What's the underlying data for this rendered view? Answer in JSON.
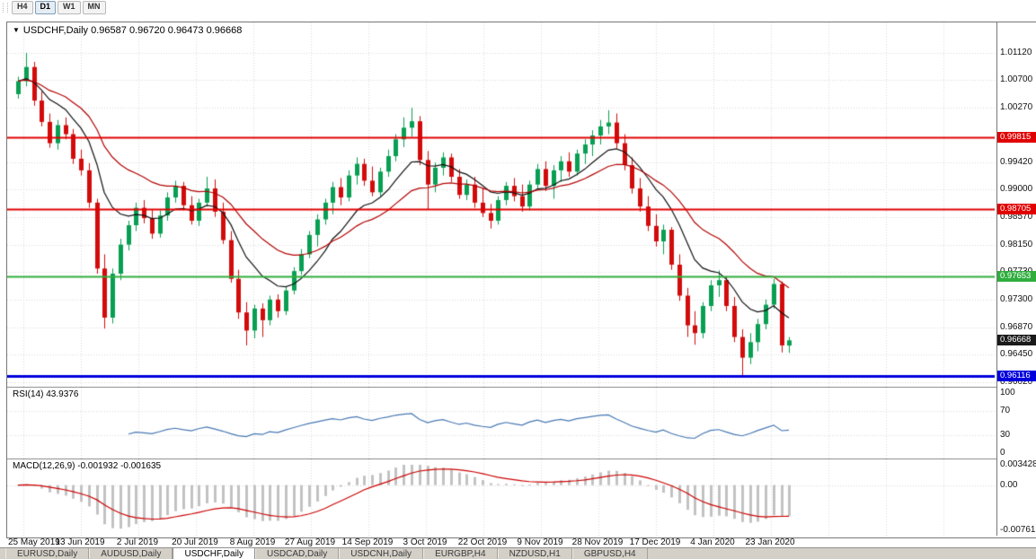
{
  "toolbar": {
    "timeframes": [
      {
        "label": "H4",
        "active": false
      },
      {
        "label": "D1",
        "active": true
      },
      {
        "label": "W1",
        "active": false
      },
      {
        "label": "MN",
        "active": false
      }
    ]
  },
  "symbol_bar": {
    "marker": "▼",
    "symbol": "USDCHF,Daily",
    "open": "0.96587",
    "high": "0.96720",
    "low": "0.96473",
    "close": "0.96668"
  },
  "price_axis": {
    "ticks": [
      "1.01120",
      "1.00700",
      "1.00270",
      "0.99420",
      "0.99000",
      "0.98570",
      "0.98150",
      "0.97730",
      "0.97300",
      "0.96870",
      "0.96450",
      "0.96020"
    ],
    "badges": [
      {
        "label": "0.99815",
        "price": 0.99815,
        "color": "#e00000"
      },
      {
        "label": "0.98705",
        "price": 0.98705,
        "color": "#e00000"
      },
      {
        "label": "0.97653",
        "price": 0.97653,
        "color": "#2fae3d"
      },
      {
        "label": "0.96668",
        "price": 0.96668,
        "color": "#1a1a1a"
      },
      {
        "label": "0.96116",
        "price": 0.96116,
        "color": "#0000dd"
      }
    ]
  },
  "rsi_panel": {
    "name": "RSI(14)",
    "value": "43.9376",
    "ticks": [
      {
        "label": "100",
        "value": 100
      },
      {
        "label": "70",
        "value": 70
      },
      {
        "label": "30",
        "value": 30
      },
      {
        "label": "0",
        "value": 0
      }
    ]
  },
  "macd_panel": {
    "name": "MACD(12,26,9)",
    "macd_value": "-0.001932",
    "signal_value": "-0.001635",
    "ticks": [
      {
        "label": "0.003428",
        "value": 0.003428
      },
      {
        "label": "0.00",
        "value": 0
      },
      {
        "label": "-0.007615",
        "value": -0.007615
      }
    ]
  },
  "dates": [
    "25 May 2019",
    "13 Jun 2019",
    "2 Jul 2019",
    "20 Jul 2019",
    "8 Aug 2019",
    "27 Aug 2019",
    "14 Sep 2019",
    "3 Oct 2019",
    "22 Oct 2019",
    "9 Nov 2019",
    "28 Nov 2019",
    "17 Dec 2019",
    "4 Jan 2020",
    "23 Jan 2020"
  ],
  "tabs": [
    {
      "label": "EURUSD,Daily",
      "active": false
    },
    {
      "label": "AUDUSD,Daily",
      "active": false
    },
    {
      "label": "USDCHF,Daily",
      "active": true
    },
    {
      "label": "USDCAD,Daily",
      "active": false
    },
    {
      "label": "USDCNH,Daily",
      "active": false
    },
    {
      "label": "EURGBP,H4",
      "active": false
    },
    {
      "label": "NZDUSD,H1",
      "active": false
    },
    {
      "label": "GBPUSD,H4",
      "active": false
    }
  ],
  "chart_data": {
    "type": "candlestick",
    "symbol": "USDCHF",
    "timeframe": "Daily",
    "title": "USDCHF,Daily",
    "ohlc_current": {
      "open": 0.96587,
      "high": 0.9672,
      "low": 0.96473,
      "close": 0.96668
    },
    "ylim": [
      0.9595,
      1.0159
    ],
    "y_ticks": [
      1.0112,
      1.007,
      1.0027,
      0.9942,
      0.99,
      0.9857,
      0.9815,
      0.9773,
      0.973,
      0.9687,
      0.9645,
      0.9602
    ],
    "x_labels": [
      "25 May 2019",
      "13 Jun 2019",
      "2 Jul 2019",
      "20 Jul 2019",
      "8 Aug 2019",
      "27 Aug 2019",
      "14 Sep 2019",
      "3 Oct 2019",
      "22 Oct 2019",
      "9 Nov 2019",
      "28 Nov 2019",
      "17 Dec 2019",
      "4 Jan 2020",
      "23 Jan 2020"
    ],
    "hlines": [
      {
        "price": 0.99815,
        "color": "#e00000",
        "width": 2,
        "label": "0.99815"
      },
      {
        "price": 0.98705,
        "color": "#e00000",
        "width": 2,
        "label": "0.98705"
      },
      {
        "price": 0.97653,
        "color": "#2fae3d",
        "width": 2,
        "label": "0.97653"
      },
      {
        "price": 0.96116,
        "color": "#0000dd",
        "width": 3,
        "label": "0.96116"
      }
    ],
    "current_price": {
      "value": 0.96668,
      "label": "0.96668",
      "badge_color": "#1a1a1a"
    },
    "moving_averages": [
      {
        "type": "ema",
        "period": 10,
        "color": "#111111"
      },
      {
        "type": "ema",
        "period": 22,
        "color": "#b30000"
      }
    ],
    "indicators": {
      "rsi": {
        "name": "RSI(14)",
        "period": 14,
        "value": 43.9376,
        "levels": [
          100,
          70,
          30,
          0
        ],
        "color": "#4778b3"
      },
      "macd": {
        "name": "MACD(12,26,9)",
        "fast": 12,
        "slow": 26,
        "signal": 9,
        "value": -0.001932,
        "signal_value": -0.001635,
        "range": [
          -0.007615,
          0.003428
        ],
        "histogram_color": "#c2c2c2",
        "signal_color": "#cc0000"
      }
    },
    "colors": {
      "bull": "#089f52",
      "bear": "#d20b0b",
      "grid": "#d8d8d8",
      "background": "#ffffff"
    },
    "candles": [
      [
        1.0048,
        1.0075,
        1.0041,
        1.0068
      ],
      [
        1.0068,
        1.0112,
        1.006,
        1.009
      ],
      [
        1.009,
        1.0098,
        1.003,
        1.0038
      ],
      [
        1.0038,
        1.0052,
        0.9998,
        1.0005
      ],
      [
        1.0005,
        1.0018,
        0.9965,
        0.9972
      ],
      [
        0.9972,
        1.0008,
        0.9962,
        1.0
      ],
      [
        1.0,
        1.0012,
        0.9978,
        0.9986
      ],
      [
        0.9986,
        0.9994,
        0.994,
        0.9948
      ],
      [
        0.9948,
        0.9962,
        0.9922,
        0.993
      ],
      [
        0.993,
        0.9941,
        0.9872,
        0.988
      ],
      [
        0.988,
        0.9886,
        0.977,
        0.9778
      ],
      [
        0.9778,
        0.98,
        0.9685,
        0.9702
      ],
      [
        0.9702,
        0.9778,
        0.9693,
        0.977
      ],
      [
        0.977,
        0.9824,
        0.976,
        0.9815
      ],
      [
        0.9815,
        0.9852,
        0.9806,
        0.9845
      ],
      [
        0.9845,
        0.988,
        0.9836,
        0.9872
      ],
      [
        0.9872,
        0.9884,
        0.9848,
        0.9856
      ],
      [
        0.9856,
        0.987,
        0.9824,
        0.9832
      ],
      [
        0.9832,
        0.9868,
        0.9826,
        0.986
      ],
      [
        0.986,
        0.9896,
        0.9852,
        0.9888
      ],
      [
        0.9888,
        0.9914,
        0.988,
        0.9906
      ],
      [
        0.9906,
        0.9912,
        0.9868,
        0.9876
      ],
      [
        0.9876,
        0.989,
        0.9846,
        0.9852
      ],
      [
        0.9852,
        0.9886,
        0.9844,
        0.988
      ],
      [
        0.988,
        0.992,
        0.9874,
        0.9902
      ],
      [
        0.9902,
        0.9916,
        0.9858,
        0.9866
      ],
      [
        0.9866,
        0.988,
        0.9816,
        0.9822
      ],
      [
        0.9822,
        0.9836,
        0.9756,
        0.9762
      ],
      [
        0.9762,
        0.9776,
        0.97,
        0.971
      ],
      [
        0.971,
        0.9726,
        0.9659,
        0.9682
      ],
      [
        0.9682,
        0.9722,
        0.967,
        0.9716
      ],
      [
        0.9716,
        0.9724,
        0.9672,
        0.9698
      ],
      [
        0.9698,
        0.9736,
        0.969,
        0.973
      ],
      [
        0.973,
        0.9738,
        0.9702,
        0.9712
      ],
      [
        0.9712,
        0.975,
        0.9706,
        0.9744
      ],
      [
        0.9744,
        0.978,
        0.9738,
        0.9774
      ],
      [
        0.9774,
        0.9808,
        0.9768,
        0.98
      ],
      [
        0.98,
        0.9836,
        0.9794,
        0.983
      ],
      [
        0.983,
        0.9862,
        0.9812,
        0.9854
      ],
      [
        0.9854,
        0.9886,
        0.9846,
        0.988
      ],
      [
        0.988,
        0.9912,
        0.9862,
        0.9904
      ],
      [
        0.9904,
        0.9918,
        0.9876,
        0.9888
      ],
      [
        0.9888,
        0.993,
        0.9882,
        0.9922
      ],
      [
        0.9922,
        0.995,
        0.9908,
        0.994
      ],
      [
        0.994,
        0.9948,
        0.9906,
        0.9914
      ],
      [
        0.9914,
        0.9936,
        0.989,
        0.9896
      ],
      [
        0.9896,
        0.9934,
        0.989,
        0.9928
      ],
      [
        0.9928,
        0.9962,
        0.992,
        0.9952
      ],
      [
        0.9952,
        0.9986,
        0.9944,
        0.9978
      ],
      [
        0.9978,
        1.0012,
        0.9966,
        0.9996
      ],
      [
        0.9996,
        1.0027,
        0.9982,
        1.0006
      ],
      [
        1.0006,
        1.0014,
        0.9938,
        0.9946
      ],
      [
        0.9946,
        0.996,
        0.987,
        0.9908
      ],
      [
        0.9908,
        0.9942,
        0.9896,
        0.9934
      ],
      [
        0.9934,
        0.9958,
        0.9922,
        0.995
      ],
      [
        0.995,
        0.9956,
        0.9912,
        0.992
      ],
      [
        0.992,
        0.9932,
        0.9886,
        0.9892
      ],
      [
        0.9892,
        0.9916,
        0.9884,
        0.9908
      ],
      [
        0.9908,
        0.992,
        0.9872,
        0.988
      ],
      [
        0.988,
        0.9902,
        0.9858,
        0.9864
      ],
      [
        0.9864,
        0.9878,
        0.984,
        0.9852
      ],
      [
        0.9852,
        0.989,
        0.9846,
        0.9884
      ],
      [
        0.9884,
        0.9912,
        0.9876,
        0.9906
      ],
      [
        0.9906,
        0.9918,
        0.9882,
        0.989
      ],
      [
        0.989,
        0.9908,
        0.9866,
        0.9874
      ],
      [
        0.9874,
        0.9914,
        0.9868,
        0.9908
      ],
      [
        0.9908,
        0.994,
        0.99,
        0.9932
      ],
      [
        0.9932,
        0.9944,
        0.9898,
        0.9906
      ],
      [
        0.9906,
        0.9938,
        0.9886,
        0.993
      ],
      [
        0.993,
        0.9952,
        0.9912,
        0.9944
      ],
      [
        0.9944,
        0.9958,
        0.992,
        0.9928
      ],
      [
        0.9928,
        0.9962,
        0.9922,
        0.9956
      ],
      [
        0.9956,
        0.9978,
        0.994,
        0.997
      ],
      [
        0.997,
        0.9992,
        0.9952,
        0.9984
      ],
      [
        0.9984,
        1.0008,
        0.997,
        0.9998
      ],
      [
        0.9998,
        1.0023,
        0.9986,
        1.0004
      ],
      [
        1.0004,
        1.0018,
        0.9964,
        0.9972
      ],
      [
        0.9972,
        0.9986,
        0.993,
        0.9938
      ],
      [
        0.9938,
        0.995,
        0.9894,
        0.9902
      ],
      [
        0.9902,
        0.9918,
        0.9866,
        0.9874
      ],
      [
        0.9874,
        0.989,
        0.9836,
        0.9844
      ],
      [
        0.9844,
        0.9862,
        0.9812,
        0.982
      ],
      [
        0.982,
        0.9846,
        0.98,
        0.9838
      ],
      [
        0.9838,
        0.9842,
        0.9776,
        0.9784
      ],
      [
        0.9784,
        0.98,
        0.9728,
        0.9736
      ],
      [
        0.9736,
        0.9748,
        0.9672,
        0.969
      ],
      [
        0.969,
        0.9712,
        0.966,
        0.9678
      ],
      [
        0.9678,
        0.9726,
        0.967,
        0.972
      ],
      [
        0.972,
        0.976,
        0.9712,
        0.9752
      ],
      [
        0.9752,
        0.9775,
        0.9734,
        0.976
      ],
      [
        0.976,
        0.9766,
        0.9712,
        0.972
      ],
      [
        0.972,
        0.9734,
        0.9664,
        0.9672
      ],
      [
        0.9672,
        0.9684,
        0.9612,
        0.964
      ],
      [
        0.964,
        0.9678,
        0.963,
        0.9664
      ],
      [
        0.9664,
        0.97,
        0.965,
        0.9692
      ],
      [
        0.9692,
        0.973,
        0.9684,
        0.9722
      ],
      [
        0.9722,
        0.9762,
        0.9716,
        0.9754
      ],
      [
        0.9754,
        0.9758,
        0.9648,
        0.9659
      ],
      [
        0.96587,
        0.9672,
        0.96473,
        0.96668
      ]
    ]
  }
}
